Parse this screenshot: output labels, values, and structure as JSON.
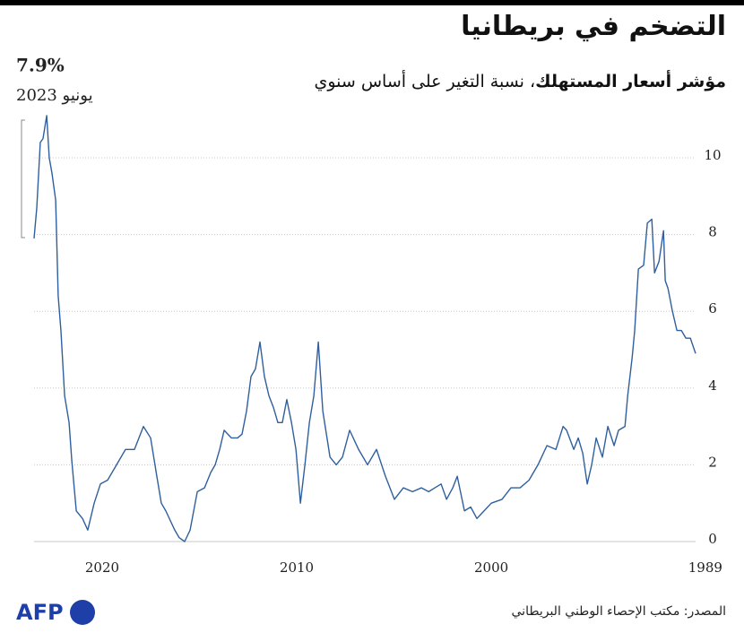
{
  "chart_data": {
    "type": "line",
    "title": "التضخم في بريطانيا",
    "subtitle": [
      "مؤشر أسعار المستهلك",
      "، نسبة التغير على أساس سنوي"
    ],
    "annotation": {
      "value": "7.9%",
      "date": "يونيو 2023"
    },
    "source": "المصدر: مكتب الإحصاء الوطني البريطاني",
    "logo": "AFP",
    "xlim": [
      2023.5,
      1989.5
    ],
    "xticks": [
      2020,
      2010,
      2000,
      1989
    ],
    "ylim": [
      0,
      11.2
    ],
    "yticks": [
      0,
      2,
      4,
      6,
      8,
      10
    ],
    "grid": true,
    "series": [
      {
        "name": "CPI",
        "color": "#2f5f9e",
        "x": [
          1989.5,
          1989.77,
          1990.0,
          1990.23,
          1990.46,
          1990.69,
          1990.92,
          1991.06,
          1991.15,
          1991.38,
          1991.61,
          1991.75,
          1991.98,
          1992.17,
          1992.44,
          1992.63,
          1992.76,
          1992.99,
          1993.13,
          1993.46,
          1993.69,
          1994.01,
          1994.29,
          1994.61,
          1994.84,
          1995.07,
          1995.3,
          1995.53,
          1995.76,
          1996.13,
          1996.31,
          1996.68,
          1997.14,
          1997.6,
          1998.06,
          1998.52,
          1998.99,
          1999.45,
          2000.0,
          2000.37,
          2000.74,
          2001.06,
          2001.38,
          2001.75,
          2001.98,
          2002.3,
          2002.58,
          2002.9,
          2003.22,
          2003.59,
          2004.05,
          2004.52,
          2004.98,
          2005.44,
          2005.9,
          2006.36,
          2006.82,
          2007.28,
          2007.65,
          2007.97,
          2008.29,
          2008.66,
          2008.89,
          2009.12,
          2009.35,
          2009.58,
          2009.81,
          2010.04,
          2010.27,
          2010.51,
          2010.74,
          2010.97,
          2011.2,
          2011.43,
          2011.66,
          2011.89,
          2012.12,
          2012.35,
          2012.58,
          2012.81,
          2013.04,
          2013.36,
          2013.73,
          2013.96,
          2014.19,
          2014.42,
          2014.74,
          2015.11,
          2015.48,
          2015.76,
          2016.04,
          2016.27,
          2016.73,
          2016.96,
          2017.19,
          2017.51,
          2017.88,
          2018.34,
          2018.8,
          2019.26,
          2019.72,
          2020.09,
          2020.41,
          2020.74,
          2021.01,
          2021.33,
          2021.56,
          2021.7,
          2021.93,
          2022.12,
          2022.26,
          2022.39,
          2022.58,
          2022.72,
          2022.85,
          2023.04,
          2023.18,
          2023.36,
          2023.5
        ],
        "values": [
          4.9,
          5.3,
          5.3,
          5.5,
          5.5,
          6.0,
          6.6,
          6.8,
          8.1,
          7.3,
          7.0,
          8.4,
          8.3,
          7.2,
          7.1,
          5.5,
          4.8,
          3.8,
          3.0,
          2.9,
          2.5,
          3.0,
          2.2,
          2.7,
          2.0,
          1.5,
          2.3,
          2.7,
          2.4,
          2.9,
          3.0,
          2.4,
          2.5,
          2.0,
          1.6,
          1.4,
          1.4,
          1.1,
          1.0,
          0.8,
          0.6,
          0.9,
          0.8,
          1.7,
          1.4,
          1.1,
          1.5,
          1.4,
          1.3,
          1.4,
          1.3,
          1.4,
          1.1,
          1.7,
          2.4,
          2.0,
          2.4,
          2.9,
          2.2,
          2.0,
          2.2,
          3.4,
          5.2,
          3.8,
          3.1,
          2.0,
          1.0,
          2.4,
          3.1,
          3.7,
          3.1,
          3.1,
          3.5,
          3.8,
          4.3,
          5.2,
          4.5,
          4.3,
          3.4,
          2.8,
          2.7,
          2.7,
          2.9,
          2.4,
          2.0,
          1.8,
          1.4,
          1.3,
          0.3,
          0.0,
          0.1,
          0.3,
          0.8,
          1.0,
          1.7,
          2.7,
          3.0,
          2.4,
          2.4,
          2.0,
          1.6,
          1.5,
          1.0,
          0.3,
          0.6,
          0.8,
          2.1,
          3.1,
          3.8,
          5.5,
          6.4,
          8.9,
          9.6,
          10.0,
          11.1,
          10.5,
          10.4,
          8.7,
          7.9
        ]
      }
    ]
  }
}
